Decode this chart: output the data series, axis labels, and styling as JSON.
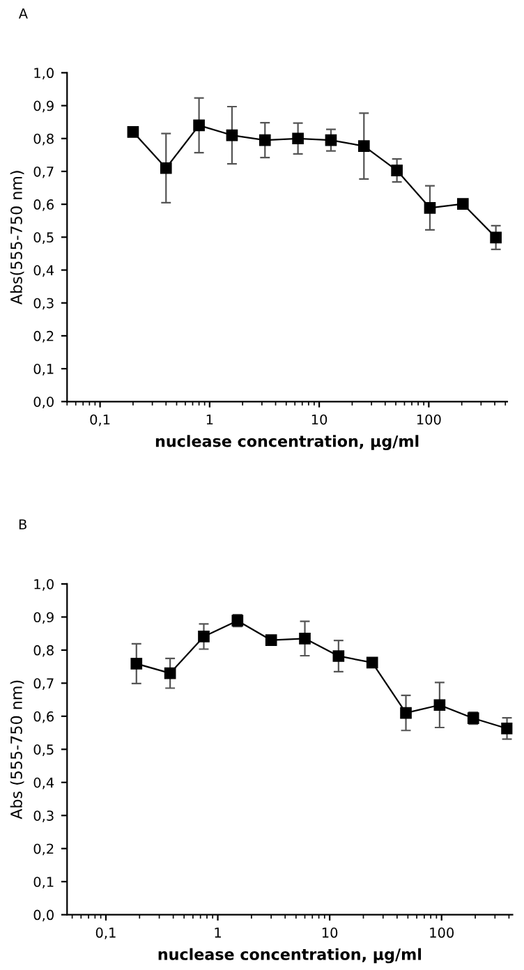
{
  "chart_data": [
    {
      "type": "line",
      "title": "A",
      "xlabel": "nuclease concentration, µg/ml",
      "ylabel": "Abs(555-750 nm)",
      "log": "x",
      "marker": "square",
      "line_style": "solid",
      "grid": false,
      "legend": false,
      "x": [
        0.2,
        0.4,
        0.8,
        1.6,
        3.2,
        6.4,
        12.8,
        25.6,
        51.2,
        102.4,
        204.8,
        409.6
      ],
      "series": [
        {
          "color": "#000000",
          "values": [
            0.82,
            0.71,
            0.84,
            0.81,
            0.795,
            0.8,
            0.795,
            0.777,
            0.703,
            0.589,
            0.601,
            0.499
          ],
          "errors": [
            0.01,
            0.105,
            0.083,
            0.087,
            0.053,
            0.047,
            0.033,
            0.1,
            0.035,
            0.067,
            0.005,
            0.036
          ]
        }
      ],
      "xlim": [
        0.05,
        520
      ],
      "xticks": [
        {
          "value": 0.1,
          "label": "0,1"
        },
        1,
        10,
        100
      ],
      "ylim": [
        0,
        1
      ],
      "yticks": [
        {
          "value": 0,
          "label": "0,0"
        },
        {
          "value": 0.1,
          "label": "0,1"
        },
        {
          "value": 0.2,
          "label": "0,2"
        },
        {
          "value": 0.3,
          "label": "0,3"
        },
        {
          "value": 0.4,
          "label": "0,4"
        },
        {
          "value": 0.5,
          "label": "0,5"
        },
        {
          "value": 0.6,
          "label": "0,6"
        },
        {
          "value": 0.7,
          "label": "0,7"
        },
        {
          "value": 0.8,
          "label": "0,8"
        },
        {
          "value": 0.9,
          "label": "0,9"
        },
        {
          "value": 1,
          "label": "1,0"
        }
      ]
    },
    {
      "type": "line",
      "title": "B",
      "xlabel": "nuclease concentration, µg/ml",
      "ylabel": "Abs (555-750 nm)",
      "log": "x",
      "marker": "square",
      "line_style": "solid",
      "grid": false,
      "legend": false,
      "x": [
        0.1875,
        0.375,
        0.75,
        1.5,
        3,
        6,
        12,
        24,
        48,
        96,
        192,
        384
      ],
      "series": [
        {
          "color": "#000000",
          "values": [
            0.759,
            0.73,
            0.841,
            0.889,
            0.83,
            0.835,
            0.782,
            0.762,
            0.61,
            0.634,
            0.594,
            0.563
          ],
          "errors": [
            0.06,
            0.045,
            0.038,
            0.018,
            null,
            0.052,
            0.047,
            0.005,
            0.053,
            0.068,
            0.018,
            0.032
          ]
        }
      ],
      "xlim": [
        0.045,
        430
      ],
      "xticks": [
        {
          "value": 0.1,
          "label": "0,1"
        },
        1,
        10,
        100
      ],
      "ylim": [
        0,
        1
      ],
      "yticks": [
        {
          "value": 0,
          "label": "0,0"
        },
        {
          "value": 0.1,
          "label": "0,1"
        },
        {
          "value": 0.2,
          "label": "0,2"
        },
        {
          "value": 0.3,
          "label": "0,3"
        },
        {
          "value": 0.4,
          "label": "0,4"
        },
        {
          "value": 0.5,
          "label": "0,5"
        },
        {
          "value": 0.6,
          "label": "0,6"
        },
        {
          "value": 0.7,
          "label": "0,7"
        },
        {
          "value": 0.8,
          "label": "0,8"
        },
        {
          "value": 0.9,
          "label": "0,9"
        },
        {
          "value": 1,
          "label": "1,0"
        }
      ]
    }
  ]
}
